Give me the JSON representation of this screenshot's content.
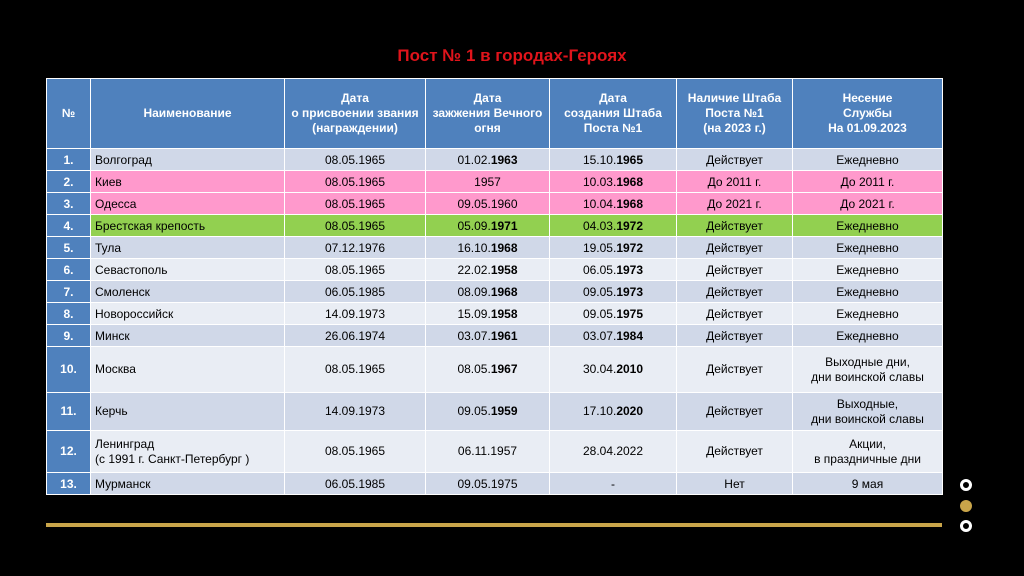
{
  "title": "Пост № 1 в городах-Героях",
  "colors": {
    "header": "#4f81bd",
    "odd_row": "#d0d8e8",
    "even_row": "#e9edf4",
    "pink_row": "#ff99cc",
    "green_row": "#92d050",
    "title": "#e0141b",
    "gold": "#c9a54a"
  },
  "columns": [
    "№",
    "Наименование",
    "Дата\nо присвоении звания\n(награждении)",
    "Дата\nзажжения Вечного\nогня",
    "Дата\nсоздания Штаба\nПоста №1",
    "Наличие Штаба\nПоста №1\n(на 2023 г.)",
    "Несение\nСлужбы\nНа 01.09.2023"
  ],
  "rows": [
    {
      "n": "1.",
      "name": "Волгоград",
      "award": "08.05.1965",
      "fire_a": "01.02.",
      "fire_b": "1963",
      "hq_a": "15.10.",
      "hq_b": "1965",
      "status": "Действует",
      "service": "Ежедневно",
      "style": "odd"
    },
    {
      "n": "2.",
      "name": "Киев",
      "award": "08.05.1965",
      "fire_a": "1957",
      "fire_b": "",
      "hq_a": "10.03.",
      "hq_b": "1968",
      "status": "До 2011 г.",
      "service": "До 2011 г.",
      "style": "pink"
    },
    {
      "n": "3.",
      "name": "Одесса",
      "award": "08.05.1965",
      "fire_a": "09.05.1960",
      "fire_b": "",
      "hq_a": "10.04.",
      "hq_b": "1968",
      "status": "До 2021 г.",
      "service": "До 2021 г.",
      "style": "pink"
    },
    {
      "n": "4.",
      "name": "Брестская крепость",
      "award": "08.05.1965",
      "fire_a": "05.09.",
      "fire_b": "1971",
      "hq_a": "04.03.",
      "hq_b": "1972",
      "status": "Действует",
      "service": "Ежедневно",
      "style": "green"
    },
    {
      "n": "5.",
      "name": "Тула",
      "award": "07.12.1976",
      "fire_a": "16.10.",
      "fire_b": "1968",
      "hq_a": "19.05.",
      "hq_b": "1972",
      "status": "Действует",
      "service": "Ежедневно",
      "style": "odd"
    },
    {
      "n": "6.",
      "name": "Севастополь",
      "award": "08.05.1965",
      "fire_a": "22.02.",
      "fire_b": "1958",
      "hq_a": "06.05.",
      "hq_b": "1973",
      "status": "Действует",
      "service": "Ежедневно",
      "style": "even"
    },
    {
      "n": "7.",
      "name": "Смоленск",
      "award": "06.05.1985",
      "fire_a": "08.09.",
      "fire_b": "1968",
      "hq_a": "09.05.",
      "hq_b": "1973",
      "status": "Действует",
      "service": "Ежедневно",
      "style": "odd"
    },
    {
      "n": "8.",
      "name": "Новороссийск",
      "award": "14.09.1973",
      "fire_a": "15.09.",
      "fire_b": "1958",
      "hq_a": "09.05.",
      "hq_b": "1975",
      "status": "Действует",
      "service": "Ежедневно",
      "style": "even"
    },
    {
      "n": "9.",
      "name": "Минск",
      "award": "26.06.1974",
      "fire_a": "03.07.",
      "fire_b": "1961",
      "hq_a": "03.07.",
      "hq_b": "1984",
      "status": "Действует",
      "service": "Ежедневно",
      "style": "odd"
    },
    {
      "n": "10.",
      "name": "Москва",
      "award": "08.05.1965",
      "fire_a": "08.05.",
      "fire_b": "1967",
      "hq_a": "30.04.",
      "hq_b": "2010",
      "status": "Действует",
      "service": "Выходные дни,\nдни воинской славы",
      "style": "even tall"
    },
    {
      "n": "11.",
      "name": "Керчь",
      "award": "14.09.1973",
      "fire_a": "09.05.",
      "fire_b": "1959",
      "hq_a": "17.10.",
      "hq_b": "2020",
      "status": "Действует",
      "service": "Выходные,\nдни воинской славы",
      "style": "odd tall2"
    },
    {
      "n": "12.",
      "name": "Ленинград\n (с 1991 г. Санкт-Петербург )",
      "award": "08.05.1965",
      "fire_a": "06.11.1957",
      "fire_b": "",
      "hq_a": "28.04.2022",
      "hq_b": "",
      "status": "Действует",
      "service": "Акции,\nв праздничные дни",
      "style": "even tall3"
    },
    {
      "n": "13.",
      "name": "Мурманск",
      "award": "06.05.1985",
      "fire_a": "09.05.1975",
      "fire_b": "",
      "hq_a": "-",
      "hq_b": "",
      "status": "Нет",
      "service": "9 мая",
      "style": "odd"
    }
  ]
}
